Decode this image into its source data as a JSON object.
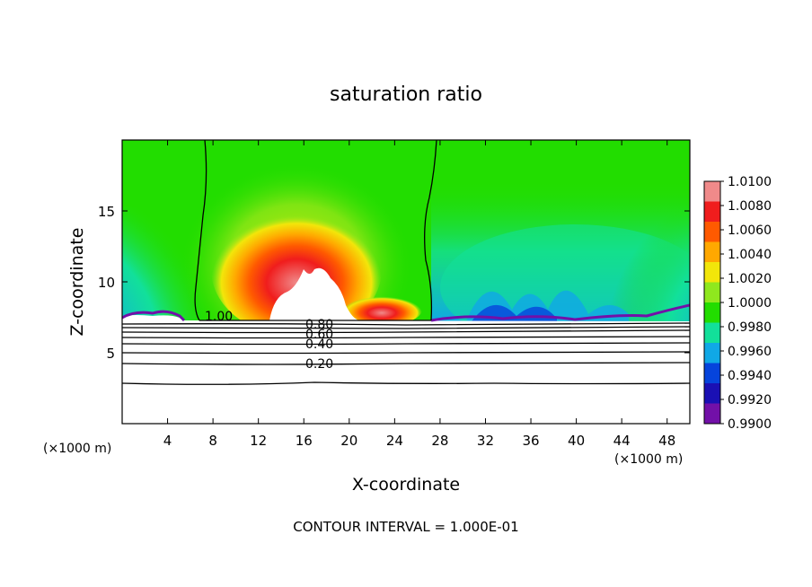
{
  "chart_data": {
    "type": "heatmap",
    "title": "saturation ratio",
    "xlabel": "X-coordinate",
    "ylabel": "Z-coordinate",
    "x_unit": "(×1000 m)",
    "x_unit_right": "(×1000 m)",
    "xlim": [
      0,
      50
    ],
    "ylim": [
      0,
      20
    ],
    "x_ticks": [
      4,
      8,
      12,
      16,
      20,
      24,
      28,
      32,
      36,
      40,
      44,
      48
    ],
    "y_ticks": [
      5,
      10,
      15
    ],
    "colorbar": {
      "levels": [
        "1.0100",
        "1.0080",
        "1.0060",
        "1.0040",
        "1.0020",
        "1.0000",
        "0.9980",
        "0.9960",
        "0.9940",
        "0.9920",
        "0.9900"
      ],
      "colors": [
        "#f08a8a",
        "#f01d1d",
        "#ff5a00",
        "#ffa800",
        "#f2e60a",
        "#8fe81e",
        "#22dd00",
        "#12e09a",
        "#10a8e6",
        "#0644dc",
        "#1a10b4",
        "#7210a8"
      ]
    },
    "contour_labels": [
      "1.00",
      "0.80",
      "0.60",
      "0.40",
      "0.20"
    ],
    "footer": "CONTOUR INTERVAL = 1.000E-01"
  }
}
